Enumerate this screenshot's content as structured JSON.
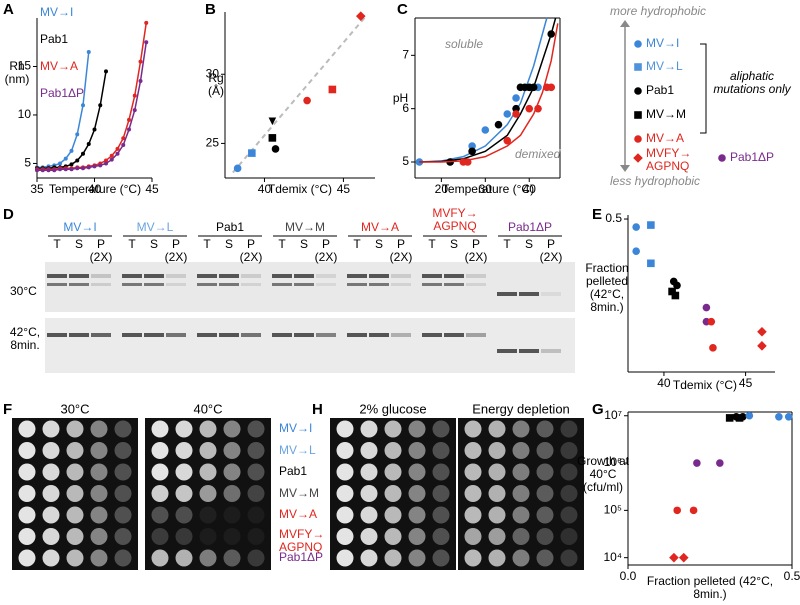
{
  "panel_letters": [
    "A",
    "B",
    "C",
    "D",
    "E",
    "F",
    "G",
    "H"
  ],
  "chart_data": [
    {
      "type": "line",
      "xlabel": "Temperature (°C)",
      "ylabel": "Rh (nm)",
      "xlim": [
        35,
        45
      ],
      "xticks": [
        35,
        40,
        45
      ],
      "ylim": [
        3.5,
        20
      ],
      "yticks": [
        5,
        10,
        15
      ],
      "legend": "upper left",
      "series": [
        {
          "name": "MV→I",
          "color": "#3b86d8",
          "x": [
            35,
            35.5,
            36,
            36.5,
            37,
            37.5,
            38,
            38.5,
            39,
            39.5
          ],
          "values": [
            4.6,
            4.6,
            4.7,
            4.8,
            5.0,
            5.5,
            6.3,
            8.0,
            11.0,
            16.5
          ]
        },
        {
          "name": "Pab1",
          "color": "#000000",
          "x": [
            35,
            35.5,
            36,
            36.5,
            37,
            37.5,
            38,
            38.5,
            39,
            39.5,
            40,
            40.5,
            41
          ],
          "values": [
            4.5,
            4.5,
            4.5,
            4.6,
            4.6,
            4.7,
            4.9,
            5.3,
            6.0,
            7.0,
            8.5,
            11.0,
            14.5
          ]
        },
        {
          "name": "MV→A",
          "color": "#e0261f",
          "x": [
            35,
            35.5,
            36,
            36.5,
            37,
            37.5,
            38,
            38.5,
            39,
            39.5,
            40,
            40.5,
            41,
            41.5,
            42,
            42.5,
            43,
            43.5,
            44,
            44.5
          ],
          "values": [
            4.4,
            4.4,
            4.4,
            4.4,
            4.5,
            4.5,
            4.5,
            4.6,
            4.6,
            4.7,
            4.8,
            5.0,
            5.3,
            5.8,
            6.5,
            7.6,
            9.5,
            12.0,
            15.5,
            19.5
          ]
        },
        {
          "name": "Pab1ΔP",
          "color": "#7a2a8c",
          "x": [
            35,
            35.5,
            36,
            36.5,
            37,
            37.5,
            38,
            38.5,
            39,
            39.5,
            40,
            40.5,
            41,
            41.5,
            42,
            42.5,
            43,
            43.5,
            44,
            44.5
          ],
          "values": [
            4.3,
            4.3,
            4.3,
            4.3,
            4.4,
            4.4,
            4.4,
            4.5,
            4.5,
            4.6,
            4.7,
            4.8,
            5.0,
            5.4,
            6.0,
            6.9,
            8.5,
            10.5,
            13.5,
            17.5
          ]
        }
      ]
    },
    {
      "type": "scatter",
      "xlabel": "Tdemix (°C)",
      "ylabel": "Rg (Å)",
      "xlim": [
        37.5,
        47
      ],
      "xticks": [
        40,
        45
      ],
      "ylim": [
        22.5,
        34.5
      ],
      "yticks": [
        25,
        30
      ],
      "series": [
        {
          "color": "#bbbbbb",
          "style": "dashed",
          "x": [
            38,
            46.5
          ],
          "values": [
            22.9,
            34.3
          ]
        },
        {
          "color": "#3b86d8",
          "marker": "circle",
          "x": [
            38.3
          ],
          "values": [
            23.2
          ]
        },
        {
          "color": "#3b86d8",
          "marker": "square",
          "x": [
            39.2
          ],
          "values": [
            24.3
          ]
        },
        {
          "color": "#000000",
          "marker": "triangle",
          "x": [
            40.5
          ],
          "values": [
            26.6
          ]
        },
        {
          "color": "#000000",
          "marker": "square",
          "x": [
            40.5
          ],
          "values": [
            25.4
          ]
        },
        {
          "color": "#000000",
          "marker": "circle",
          "x": [
            40.7
          ],
          "values": [
            24.6
          ]
        },
        {
          "color": "#e0261f",
          "marker": "circle",
          "x": [
            42.7
          ],
          "values": [
            28.1
          ]
        },
        {
          "color": "#e0261f",
          "marker": "square",
          "x": [
            44.3
          ],
          "values": [
            28.9
          ]
        },
        {
          "color": "#e0261f",
          "marker": "diamond",
          "x": [
            46.1
          ],
          "values": [
            34.2
          ]
        }
      ]
    },
    {
      "type": "scatter",
      "xlabel": "Temperature (°C)",
      "ylabel": "pH",
      "xlim": [
        14,
        47
      ],
      "xticks": [
        20,
        30,
        40
      ],
      "ylim": [
        4.7,
        7.7
      ],
      "yticks": [
        5,
        6,
        7
      ],
      "annotations": [
        "soluble",
        "demixed"
      ],
      "series": [
        {
          "color": "#3b86d8",
          "marker": "circle",
          "x": [
            15,
            22,
            27,
            30,
            35,
            37,
            40,
            42
          ],
          "values": [
            5.0,
            5.0,
            5.3,
            5.6,
            5.9,
            6.2,
            6.4,
            6.4
          ],
          "fit_x": [
            15,
            20,
            25,
            30,
            35,
            38,
            41,
            43,
            44
          ],
          "fit": [
            5.0,
            5.02,
            5.1,
            5.3,
            5.7,
            6.1,
            6.8,
            7.4,
            7.7
          ]
        },
        {
          "color": "#000000",
          "marker": "circle",
          "x": [
            22,
            27,
            33,
            37,
            38,
            39,
            40,
            41,
            45
          ],
          "values": [
            5.0,
            5.2,
            5.7,
            6.0,
            6.4,
            6.4,
            6.4,
            6.4,
            7.4
          ],
          "fit_x": [
            15,
            20,
            25,
            30,
            35,
            38,
            41,
            43,
            45,
            46
          ],
          "fit": [
            5.0,
            5.01,
            5.06,
            5.2,
            5.5,
            5.9,
            6.4,
            6.9,
            7.4,
            7.7
          ]
        },
        {
          "color": "#e0261f",
          "marker": "circle",
          "x": [
            25,
            26,
            35,
            37,
            40,
            42,
            44,
            45
          ],
          "values": [
            5.0,
            5.0,
            5.4,
            5.9,
            6.0,
            6.0,
            6.4,
            6.4
          ],
          "fit_x": [
            15,
            20,
            25,
            30,
            35,
            38,
            41,
            43,
            45,
            46.5
          ],
          "fit": [
            5.0,
            5.0,
            5.02,
            5.1,
            5.3,
            5.5,
            5.9,
            6.3,
            6.9,
            7.6
          ]
        }
      ]
    },
    {
      "type": "scatter",
      "xlabel": "Tdemix (°C)",
      "ylabel": "Fraction pelleted (42°C, 8min.)",
      "xlim": [
        37.8,
        46.8
      ],
      "xticks": [
        40,
        45
      ],
      "ylim": [
        0.12,
        0.51
      ],
      "yticks": [
        0.5
      ],
      "series": [
        {
          "color": "#3b86d8",
          "marker": "circle",
          "x": [
            38.3,
            38.3
          ],
          "values": [
            0.48,
            0.42
          ]
        },
        {
          "color": "#3b86d8",
          "marker": "square",
          "x": [
            39.2,
            39.2
          ],
          "values": [
            0.485,
            0.39
          ]
        },
        {
          "color": "#000000",
          "marker": "circle",
          "x": [
            40.6,
            40.8
          ],
          "values": [
            0.345,
            0.335
          ]
        },
        {
          "color": "#000000",
          "marker": "square",
          "x": [
            40.5,
            40.7
          ],
          "values": [
            0.32,
            0.31
          ]
        },
        {
          "color": "#7a2a8c",
          "marker": "circle",
          "x": [
            42.6,
            42.6
          ],
          "values": [
            0.28,
            0.245
          ]
        },
        {
          "color": "#e0261f",
          "marker": "circle",
          "x": [
            42.9,
            43.0
          ],
          "values": [
            0.245,
            0.18
          ]
        },
        {
          "color": "#e0261f",
          "marker": "diamond",
          "x": [
            46.0,
            46.0
          ],
          "values": [
            0.22,
            0.185
          ]
        }
      ]
    },
    {
      "type": "scatter",
      "xlabel": "Fraction pelleted (42°C, 8min.)",
      "ylabel": "Growth at 40°C (cfu/ml)",
      "xlim": [
        0,
        0.5
      ],
      "xticks": [
        {
          "value": 0,
          "label": "0.0"
        },
        0.5
      ],
      "ylim": [
        7000,
        12000000
      ],
      "ylog": true,
      "yticks": [
        {
          "value": 10000,
          "label": "10⁴"
        },
        {
          "value": 100000,
          "label": "10⁵"
        },
        {
          "value": 1000000,
          "label": "10⁶"
        },
        {
          "value": 10000000,
          "label": "10⁷"
        }
      ],
      "series": [
        {
          "color": "#e0261f",
          "marker": "diamond",
          "x": [
            0.14,
            0.17
          ],
          "values": [
            10000,
            10000
          ]
        },
        {
          "color": "#e0261f",
          "marker": "circle",
          "x": [
            0.15,
            0.2
          ],
          "values": [
            100000,
            100000
          ]
        },
        {
          "color": "#7a2a8c",
          "marker": "circle",
          "x": [
            0.21,
            0.28
          ],
          "values": [
            1000000,
            1000000
          ]
        },
        {
          "color": "#000000",
          "marker": "square",
          "x": [
            0.31,
            0.34
          ],
          "values": [
            9000000,
            9000000
          ]
        },
        {
          "color": "#000000",
          "marker": "circle",
          "x": [
            0.33,
            0.35
          ],
          "values": [
            9500000,
            9500000
          ]
        },
        {
          "color": "#3b86d8",
          "marker": "circle",
          "x": [
            0.37,
            0.46,
            0.49
          ],
          "values": [
            10000000,
            9500000,
            9500000
          ]
        }
      ]
    }
  ],
  "legend_key": {
    "top": "more hydrophobic",
    "bottom": "less hydrophobic",
    "note": "aliphatic mutations only",
    "items": [
      {
        "name": "MV→I",
        "color": "#3b86d8",
        "marker": "circle"
      },
      {
        "name": "MV→L",
        "color": "#4f93dc",
        "marker": "square"
      },
      {
        "name": "Pab1",
        "color": "#000000",
        "marker": "circle"
      },
      {
        "name": "MV→M",
        "color": "#000000",
        "marker": "square"
      },
      {
        "name": "MV→A",
        "color": "#e0261f",
        "marker": "circle"
      },
      {
        "name": "MVFY→ AGPNQ",
        "color": "#e0261f",
        "marker": "diamond"
      },
      {
        "name": "Pab1ΔP",
        "color": "#7a2a8c",
        "marker": "circle"
      }
    ]
  },
  "gel": {
    "groups": [
      {
        "name": "MV→I",
        "color": "#3b86d8"
      },
      {
        "name": "MV→L",
        "color": "#6ba3e0"
      },
      {
        "name": "Pab1",
        "color": "#000000"
      },
      {
        "name": "MV→M",
        "color": "#444444"
      },
      {
        "name": "MV→A",
        "color": "#e0261f"
      },
      {
        "name": "MVFY→ AGPNQ",
        "color": "#e0261f"
      },
      {
        "name": "Pab1ΔP",
        "color": "#7a2a8c"
      }
    ],
    "lanes": [
      "T",
      "S",
      "P"
    ],
    "p_note": "(2X)",
    "rows": [
      "30°C",
      "42°C, 8min."
    ]
  },
  "spot_assay": {
    "conditions_f": [
      "30°C",
      "40°C"
    ],
    "conditions_h": [
      "2% glucose",
      "Energy depletion"
    ],
    "strains": [
      {
        "name": "MV→I",
        "color": "#3b86d8"
      },
      {
        "name": "MV→L",
        "color": "#6ba3e0"
      },
      {
        "name": "Pab1",
        "color": "#000000"
      },
      {
        "name": "MV→M",
        "color": "#444444"
      },
      {
        "name": "MV→A",
        "color": "#e0261f"
      },
      {
        "name": "MVFY→ AGPNQ",
        "color": "#e0261f"
      },
      {
        "name": "Pab1ΔP",
        "color": "#7a2a8c"
      }
    ]
  }
}
